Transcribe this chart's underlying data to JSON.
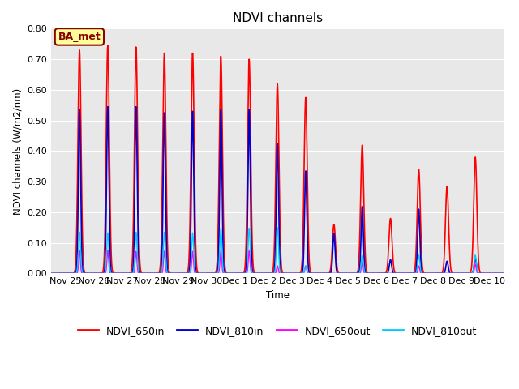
{
  "title": "NDVI channels",
  "ylabel": "NDVI channels (W/m2/nm)",
  "xlabel": "Time",
  "xlim_start": -0.5,
  "xlim_end": 15.5,
  "ylim": [
    0.0,
    0.8
  ],
  "yticks": [
    0.0,
    0.1,
    0.2,
    0.3,
    0.4,
    0.5,
    0.6,
    0.7,
    0.8
  ],
  "xtick_labels": [
    "Nov 25",
    "Nov 26",
    "Nov 27",
    "Nov 28",
    "Nov 29",
    "Nov 30",
    "Dec 1",
    "Dec 2",
    "Dec 3",
    "Dec 4",
    "Dec 5",
    "Dec 6",
    "Dec 7",
    "Dec 8",
    "Dec 9",
    "Dec 10"
  ],
  "background_color": "#e8e8e8",
  "figure_bg": "#ffffff",
  "annotation_text": "BA_met",
  "annotation_bg": "#ffff99",
  "annotation_border": "#8B0000",
  "colors": {
    "NDVI_650in": "#ff0000",
    "NDVI_810in": "#0000cc",
    "NDVI_650out": "#ff00ff",
    "NDVI_810out": "#00ccff"
  },
  "peak_positions": [
    0.5,
    1.5,
    2.5,
    3.5,
    4.5,
    5.5,
    6.5,
    7.5,
    8.5,
    9.5,
    10.5,
    11.5,
    12.5,
    13.5,
    14.5
  ],
  "peak_heights_650in": [
    0.73,
    0.745,
    0.74,
    0.72,
    0.72,
    0.71,
    0.7,
    0.62,
    0.575,
    0.16,
    0.42,
    0.18,
    0.34,
    0.285,
    0.38
  ],
  "peak_heights_810in": [
    0.535,
    0.545,
    0.545,
    0.525,
    0.53,
    0.535,
    0.535,
    0.425,
    0.335,
    0.13,
    0.22,
    0.045,
    0.21,
    0.04,
    0.05
  ],
  "peak_heights_650out": [
    0.075,
    0.075,
    0.072,
    0.073,
    0.072,
    0.074,
    0.074,
    0.025,
    0.025,
    0.0,
    0.04,
    0.0,
    0.025,
    0.0,
    0.03
  ],
  "peak_heights_810out": [
    0.135,
    0.133,
    0.135,
    0.135,
    0.133,
    0.148,
    0.148,
    0.15,
    0.025,
    0.0,
    0.06,
    0.0,
    0.06,
    0.0,
    0.06
  ],
  "sigma_650in": 0.055,
  "sigma_810in": 0.04,
  "sigma_650out": 0.03,
  "sigma_810out": 0.038,
  "lw_in": 1.2,
  "lw_out": 1.0
}
